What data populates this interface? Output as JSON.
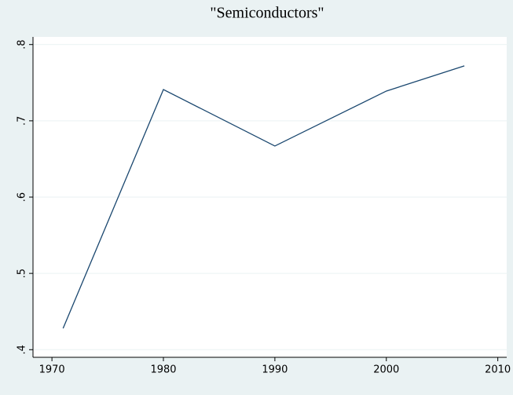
{
  "chart_data": {
    "type": "line",
    "title": "\"Semiconductors\"",
    "x": [
      1971,
      1980,
      1990,
      2000,
      2007
    ],
    "series": [
      {
        "color": "#1a476f",
        "values": [
          0.428,
          0.741,
          0.667,
          0.739,
          0.772
        ]
      }
    ],
    "xlim": [
      1968.3,
      2010.8
    ],
    "xticks": [
      1970,
      1980,
      1990,
      2000,
      2010
    ],
    "ylim": [
      0.39,
      0.81
    ],
    "yticks": [
      {
        "value": 0.4,
        "label": ".4"
      },
      {
        "value": 0.5,
        "label": ".5"
      },
      {
        "value": 0.6,
        "label": ".6"
      },
      {
        "value": 0.7,
        "label": ".7"
      },
      {
        "value": 0.8,
        "label": ".8"
      }
    ],
    "grid": true
  }
}
